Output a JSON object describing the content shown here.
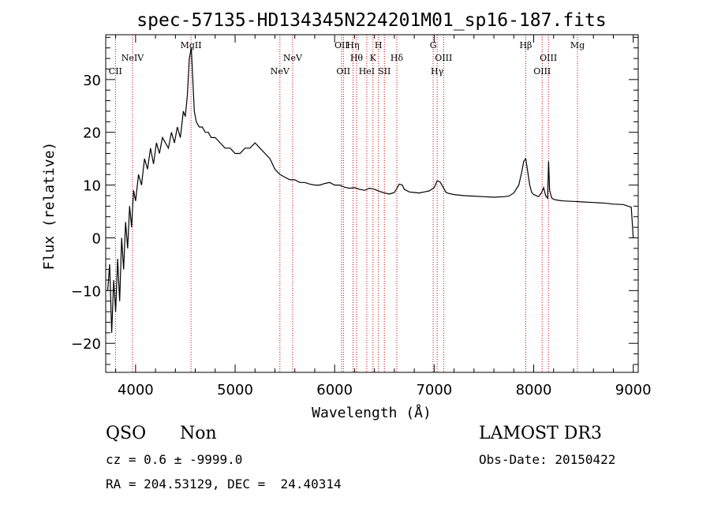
{
  "chart_data": {
    "type": "line",
    "title": "spec-57135-HD134345N224201M01_sp16-187.fits",
    "xlabel": "Wavelength (Å)",
    "ylabel": "Flux (relative)",
    "xlim": [
      3700,
      9050
    ],
    "ylim": [
      -25.5,
      38.5
    ],
    "x_ticks": [
      4000,
      5000,
      6000,
      7000,
      8000,
      9000
    ],
    "y_ticks": [
      -20,
      -10,
      0,
      10,
      20,
      30
    ],
    "grid": false,
    "line_color": "#000000",
    "marker_color": "#cc0000",
    "series": [
      {
        "x": [
          3720,
          3740,
          3760,
          3780,
          3800,
          3820,
          3840,
          3860,
          3880,
          3900,
          3920,
          3940,
          3960,
          3980,
          4000,
          4030,
          4060,
          4090,
          4120,
          4150,
          4180,
          4210,
          4240,
          4270,
          4300,
          4330,
          4360,
          4390,
          4420,
          4450,
          4480,
          4500,
          4520,
          4540,
          4560,
          4575,
          4590,
          4610,
          4640,
          4670,
          4700,
          4730,
          4760,
          4800,
          4850,
          4900,
          4950,
          5000,
          5050,
          5100,
          5150,
          5200,
          5250,
          5300,
          5350,
          5400,
          5450,
          5500,
          5550,
          5600,
          5650,
          5700,
          5750,
          5800,
          5850,
          5900,
          5950,
          6000,
          6050,
          6100,
          6150,
          6200,
          6250,
          6300,
          6350,
          6400,
          6450,
          6500,
          6550,
          6600,
          6650,
          6680,
          6700,
          6750,
          6800,
          6850,
          6900,
          6950,
          7000,
          7030,
          7060,
          7090,
          7120,
          7150,
          7200,
          7300,
          7400,
          7500,
          7600,
          7700,
          7750,
          7800,
          7850,
          7880,
          7900,
          7920,
          7940,
          7960,
          7980,
          8000,
          8050,
          8080,
          8100,
          8120,
          8140,
          8150,
          8160,
          8180,
          8200,
          8250,
          8300,
          8400,
          8500,
          8600,
          8700,
          8800,
          8900,
          8980,
          9000
        ],
        "y": [
          -10,
          -5,
          -18,
          -8,
          -14,
          -4,
          -12,
          0,
          -6,
          3,
          -2,
          6,
          2,
          9,
          7,
          12,
          10,
          15,
          13,
          17,
          14,
          18,
          16,
          19,
          18,
          17,
          20,
          18,
          21,
          19,
          24,
          23,
          27,
          34,
          36,
          30,
          24,
          22,
          21,
          21,
          20,
          20,
          19,
          19,
          18,
          17,
          17,
          16,
          16,
          17,
          17,
          18,
          17,
          16,
          15,
          13,
          12,
          11.5,
          11,
          11,
          10.5,
          10.5,
          10.2,
          10,
          10,
          10.3,
          10.5,
          10,
          10,
          9.6,
          9.4,
          9.5,
          9.2,
          9,
          9.4,
          9.2,
          8.8,
          8.5,
          8.3,
          8.6,
          10.2,
          10,
          9.2,
          8.7,
          8.6,
          8.5,
          8.7,
          8.9,
          9.5,
          10.8,
          10.6,
          9.6,
          8.6,
          8.4,
          8.2,
          8,
          7.9,
          7.8,
          7.7,
          7.8,
          7.9,
          8.5,
          10,
          12.5,
          14.5,
          15,
          12.5,
          10,
          8.6,
          8.2,
          7.8,
          8.6,
          9.5,
          8,
          7.5,
          14.5,
          9,
          7.6,
          7.3,
          7.1,
          7,
          6.9,
          6.8,
          6.7,
          6.6,
          6.4,
          6.3,
          5.8,
          0
        ]
      }
    ],
    "lines": [
      {
        "x": 3798,
        "label": "CII",
        "row": 2
      },
      {
        "x": 3969,
        "label": "NeIV",
        "row": 1
      },
      {
        "x": 4557,
        "label": "MgII",
        "row": 0
      },
      {
        "x": 5450,
        "label": "NeV",
        "row": 2
      },
      {
        "x": 5578,
        "label": "NeV",
        "row": 1
      },
      {
        "x": 6069,
        "label": "OII",
        "row": 0
      },
      {
        "x": 6088,
        "label": "OII",
        "row": 2
      },
      {
        "x": 6185,
        "label": "Hη",
        "row": 0
      },
      {
        "x": 6220,
        "label": "Hθ",
        "row": 1
      },
      {
        "x": 6323,
        "label": "HeI",
        "row": 2
      },
      {
        "x": 6385,
        "label": "K",
        "row": 1
      },
      {
        "x": 6440,
        "label": "H",
        "row": 0
      },
      {
        "x": 6500,
        "label": "SII",
        "row": 2
      },
      {
        "x": 6625,
        "label": "Hδ",
        "row": 1
      },
      {
        "x": 6990,
        "label": "G",
        "row": 0
      },
      {
        "x": 7030,
        "label": "Hγ",
        "row": 2
      },
      {
        "x": 7095,
        "label": "OIII",
        "row": 1
      },
      {
        "x": 7920,
        "label": "Hβ",
        "row": 0
      },
      {
        "x": 8085,
        "label": "OIII",
        "row": 2
      },
      {
        "x": 8148,
        "label": "OIII",
        "row": 1
      },
      {
        "x": 8440,
        "label": "Mg",
        "row": 0
      }
    ]
  },
  "info": {
    "class": "QSO",
    "subclass": "Non",
    "survey": "LAMOST DR3",
    "cz": "cz = 0.6 ± -9999.0",
    "obs_date": "Obs-Date: 20150422",
    "radec": "RA = 204.53129, DEC =  24.40314"
  }
}
